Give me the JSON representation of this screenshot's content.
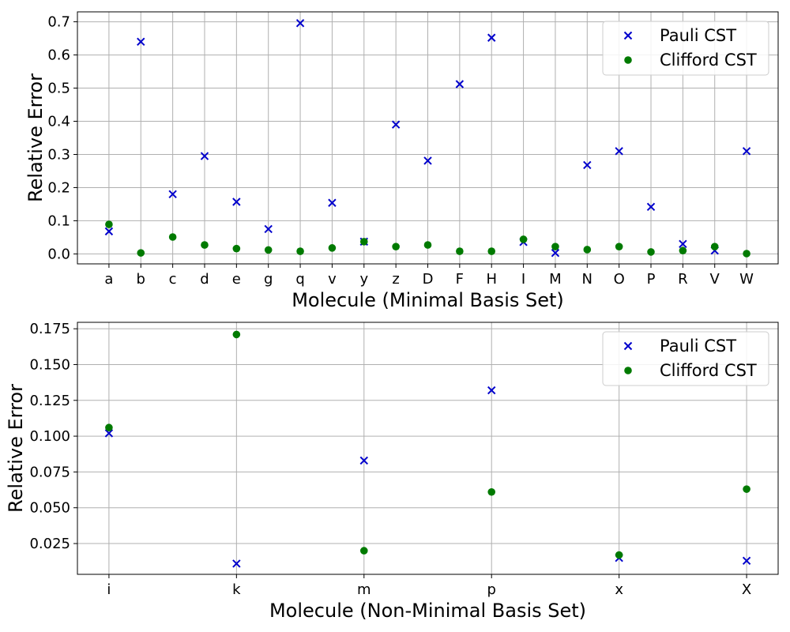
{
  "colors": {
    "pauli": "#0000cc",
    "clifford": "#007a00"
  },
  "chart_data": [
    {
      "type": "scatter",
      "xlabel": "Molecule (Minimal Basis Set)",
      "ylabel": "Relative Error",
      "ylim": [
        -0.03,
        0.73
      ],
      "yticks": [
        0.0,
        0.1,
        0.2,
        0.3,
        0.4,
        0.5,
        0.6,
        0.7
      ],
      "ytick_labels": [
        "0.0",
        "0.1",
        "0.2",
        "0.3",
        "0.4",
        "0.5",
        "0.6",
        "0.7"
      ],
      "grid": true,
      "legend_position": "top-right",
      "categories": [
        "a",
        "b",
        "c",
        "d",
        "e",
        "g",
        "q",
        "v",
        "y",
        "z",
        "D",
        "F",
        "H",
        "I",
        "M",
        "N",
        "O",
        "P",
        "R",
        "V",
        "W"
      ],
      "series": [
        {
          "name": "Pauli CST",
          "marker": "x",
          "values": [
            0.068,
            0.64,
            0.18,
            0.295,
            0.157,
            0.075,
            0.696,
            0.154,
            0.037,
            0.39,
            0.281,
            0.512,
            0.652,
            0.036,
            0.003,
            0.268,
            0.31,
            0.142,
            0.03,
            0.01,
            0.31
          ]
        },
        {
          "name": "Clifford CST",
          "marker": "o",
          "values": [
            0.089,
            0.003,
            0.051,
            0.027,
            0.016,
            0.012,
            0.008,
            0.018,
            0.037,
            0.022,
            0.027,
            0.008,
            0.008,
            0.044,
            0.022,
            0.013,
            0.022,
            0.006,
            0.01,
            0.022,
            0.001
          ]
        }
      ]
    },
    {
      "type": "scatter",
      "xlabel": "Molecule (Non-Minimal Basis Set)",
      "ylabel": "Relative Error",
      "ylim": [
        0.0035,
        0.1795
      ],
      "yticks": [
        0.025,
        0.05,
        0.075,
        0.1,
        0.125,
        0.15,
        0.175
      ],
      "ytick_labels": [
        "0.025",
        "0.050",
        "0.075",
        "0.100",
        "0.125",
        "0.150",
        "0.175"
      ],
      "grid": true,
      "legend_position": "top-right",
      "categories": [
        "i",
        "k",
        "m",
        "p",
        "x",
        "X"
      ],
      "series": [
        {
          "name": "Pauli CST",
          "marker": "x",
          "values": [
            0.102,
            0.011,
            0.083,
            0.132,
            0.015,
            0.013
          ]
        },
        {
          "name": "Clifford CST",
          "marker": "o",
          "values": [
            0.106,
            0.171,
            0.02,
            0.061,
            0.017,
            0.063
          ]
        }
      ]
    }
  ]
}
